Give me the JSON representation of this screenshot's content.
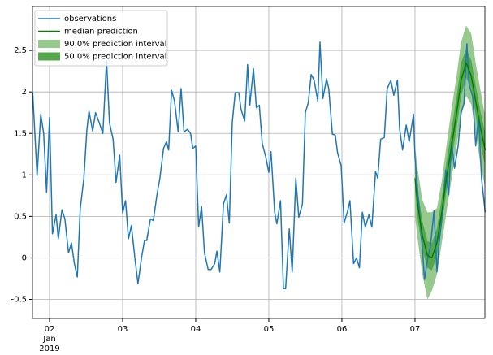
{
  "chart_data": {
    "type": "line",
    "xlim": [
      1.767,
      7.956
    ],
    "ylim": [
      -0.73,
      3.03
    ],
    "xticks": [
      {
        "value": 2,
        "label": "02"
      },
      {
        "value": 3,
        "label": "03"
      },
      {
        "value": 4,
        "label": "04"
      },
      {
        "value": 5,
        "label": "05"
      },
      {
        "value": 6,
        "label": "06"
      },
      {
        "value": 7,
        "label": "07"
      }
    ],
    "xtick_sublabels": [
      "Jan",
      "2019"
    ],
    "yticks": [
      -0.5,
      0.0,
      0.5,
      1.0,
      1.5,
      2.0,
      2.5
    ],
    "grid": true,
    "legend": "upper left",
    "series": [
      {
        "name": "observations",
        "color": "#1f77b4",
        "x": [
          1.77,
          1.83,
          1.88,
          1.92,
          1.96,
          2.0,
          2.04,
          2.09,
          2.12,
          2.17,
          2.21,
          2.26,
          2.3,
          2.34,
          2.38,
          2.42,
          2.47,
          2.51,
          2.54,
          2.59,
          2.63,
          2.68,
          2.73,
          2.78,
          2.82,
          2.87,
          2.91,
          2.96,
          3.0,
          3.04,
          3.08,
          3.12,
          3.17,
          3.21,
          3.26,
          3.3,
          3.33,
          3.38,
          3.42,
          3.47,
          3.51,
          3.56,
          3.6,
          3.63,
          3.67,
          3.71,
          3.76,
          3.8,
          3.84,
          3.89,
          3.93,
          3.96,
          4.0,
          4.04,
          4.08,
          4.12,
          4.17,
          4.21,
          4.26,
          4.29,
          4.33,
          4.38,
          4.42,
          4.46,
          4.5,
          4.54,
          4.59,
          4.62,
          4.67,
          4.71,
          4.74,
          4.79,
          4.83,
          4.87,
          4.91,
          4.96,
          5.0,
          5.03,
          5.08,
          5.11,
          5.16,
          5.2,
          5.23,
          5.28,
          5.32,
          5.37,
          5.41,
          5.46,
          5.5,
          5.54,
          5.58,
          5.62,
          5.67,
          5.7,
          5.74,
          5.79,
          5.82,
          5.87,
          5.91,
          5.94,
          5.99,
          6.03,
          6.08,
          6.11,
          6.16,
          6.2,
          6.24,
          6.28,
          6.32,
          6.37,
          6.41,
          6.46,
          6.49,
          6.53,
          6.58,
          6.62,
          6.67,
          6.71,
          6.76,
          6.79,
          6.83,
          6.88,
          6.92,
          6.98,
          7.0,
          7.04,
          7.09,
          7.13,
          7.17,
          7.21,
          7.26,
          7.3,
          7.33,
          7.38,
          7.42,
          7.46,
          7.5,
          7.54,
          7.59,
          7.63,
          7.67,
          7.71,
          7.74,
          7.79,
          7.83,
          7.87,
          7.91,
          7.96
        ],
        "values": [
          1.99,
          0.99,
          1.73,
          1.5,
          0.79,
          1.69,
          0.29,
          0.52,
          0.23,
          0.58,
          0.47,
          0.06,
          0.18,
          -0.07,
          -0.23,
          0.59,
          0.96,
          1.53,
          1.77,
          1.53,
          1.75,
          1.63,
          1.5,
          2.38,
          1.63,
          1.43,
          0.91,
          1.24,
          0.54,
          0.69,
          0.23,
          0.39,
          -0.02,
          -0.31,
          0.01,
          0.21,
          0.21,
          0.47,
          0.45,
          0.76,
          0.96,
          1.32,
          1.4,
          1.3,
          2.02,
          1.89,
          1.52,
          2.04,
          1.52,
          1.55,
          1.5,
          1.32,
          1.35,
          0.37,
          0.62,
          0.06,
          -0.14,
          -0.14,
          -0.07,
          0.08,
          -0.17,
          0.65,
          0.76,
          0.42,
          1.63,
          1.99,
          1.99,
          1.79,
          1.65,
          2.33,
          1.84,
          2.28,
          1.81,
          1.84,
          1.38,
          1.21,
          1.03,
          1.28,
          0.55,
          0.41,
          0.69,
          -0.37,
          -0.37,
          0.35,
          -0.17,
          0.96,
          0.49,
          0.65,
          1.75,
          1.87,
          2.21,
          2.14,
          1.89,
          2.6,
          1.92,
          2.16,
          2.04,
          1.49,
          1.48,
          1.27,
          1.11,
          0.42,
          0.57,
          0.69,
          -0.07,
          0,
          -0.12,
          0.55,
          0.37,
          0.52,
          0.37,
          1.04,
          0.96,
          1.43,
          1.45,
          2.04,
          2.14,
          1.96,
          2.14,
          1.55,
          1.3,
          1.6,
          1.4,
          1.73,
          1.21,
          0.76,
          0.25,
          -0.26,
          -0.02,
          0.13,
          0.57,
          -0.17,
          0.18,
          0.57,
          1.06,
          0.76,
          1.4,
          1.08,
          1.35,
          1.75,
          1.86,
          2.58,
          2.09,
          1.94,
          1.35,
          1.7,
          0.96,
          0.55
        ]
      },
      {
        "name": "median prediction",
        "color": "#008000",
        "x": [
          7.0,
          7.04,
          7.1,
          7.17,
          7.23,
          7.3,
          7.37,
          7.43,
          7.5,
          7.57,
          7.63,
          7.7,
          7.77,
          7.83,
          7.9,
          7.96
        ],
        "values": [
          0.96,
          0.62,
          0.27,
          0.03,
          0,
          0.18,
          0.57,
          0.96,
          1.35,
          1.75,
          2.14,
          2.35,
          2.19,
          1.89,
          1.55,
          1.3
        ]
      },
      {
        "name": "90.0% prediction interval",
        "color": "#97c98f",
        "x": [
          7.0,
          7.04,
          7.1,
          7.17,
          7.23,
          7.3,
          7.37,
          7.43,
          7.5,
          7.57,
          7.63,
          7.7,
          7.77,
          7.83,
          7.9,
          7.96
        ],
        "lower": [
          0.5,
          0.2,
          -0.2,
          -0.5,
          -0.4,
          -0.2,
          0.2,
          0.55,
          0.95,
          1.35,
          1.7,
          1.95,
          1.85,
          1.5,
          1.1,
          0.85
        ],
        "upper": [
          1.35,
          1.05,
          0.7,
          0.55,
          0.55,
          0.6,
          0.95,
          1.35,
          1.8,
          2.2,
          2.6,
          2.8,
          2.7,
          2.35,
          2.0,
          1.7
        ]
      },
      {
        "name": "50.0% prediction interval",
        "color": "#56a64d",
        "x": [
          7.0,
          7.04,
          7.1,
          7.17,
          7.23,
          7.3,
          7.37,
          7.43,
          7.5,
          7.57,
          7.63,
          7.7,
          7.77,
          7.83,
          7.9,
          7.96
        ],
        "lower": [
          0.8,
          0.45,
          0.1,
          -0.12,
          -0.15,
          0.02,
          0.42,
          0.8,
          1.18,
          1.57,
          1.95,
          2.17,
          2.05,
          1.72,
          1.35,
          1.1
        ],
        "upper": [
          1.1,
          0.8,
          0.45,
          0.2,
          0.18,
          0.35,
          0.75,
          1.15,
          1.55,
          1.95,
          2.35,
          2.52,
          2.38,
          2.08,
          1.75,
          1.5
        ]
      }
    ]
  }
}
